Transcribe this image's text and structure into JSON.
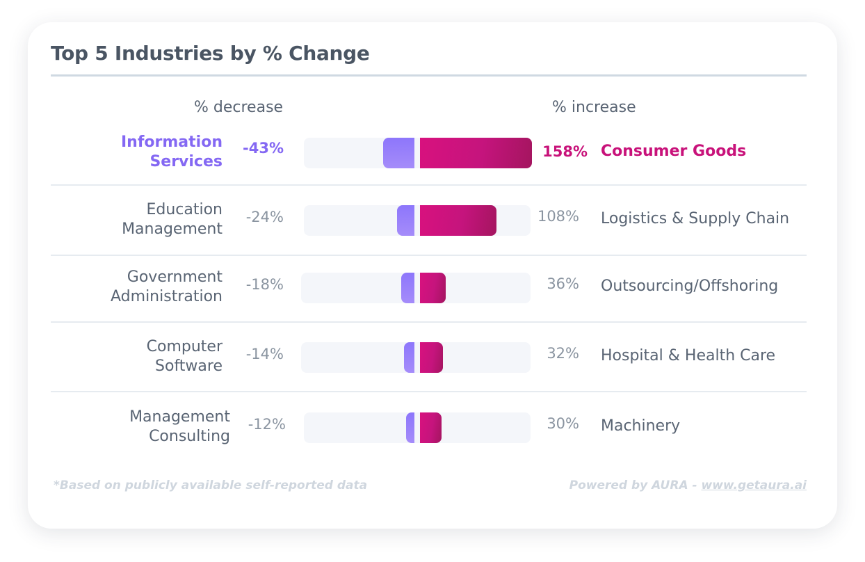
{
  "chart_data": {
    "type": "bar",
    "title": "Top 5 Industries by % Change",
    "left_header": "% decrease",
    "right_header": "% increase",
    "unit": "%",
    "rows": [
      {
        "decrease_industry": [
          "Information",
          "Services"
        ],
        "decrease_value": -43,
        "decrease_label": "-43%",
        "increase_industry": "Consumer Goods",
        "increase_value": 158,
        "increase_label": "158%",
        "highlight": true
      },
      {
        "decrease_industry": [
          "Education",
          "Management"
        ],
        "decrease_value": -24,
        "decrease_label": "-24%",
        "increase_industry": "Logistics & Supply Chain",
        "increase_value": 108,
        "increase_label": "108%",
        "highlight": false
      },
      {
        "decrease_industry": [
          "Government",
          "Administration"
        ],
        "decrease_value": -18,
        "decrease_label": "-18%",
        "increase_industry": "Outsourcing/Offshoring",
        "increase_value": 36,
        "increase_label": "36%",
        "highlight": false
      },
      {
        "decrease_industry": [
          "Computer",
          "Software"
        ],
        "decrease_value": -14,
        "decrease_label": "-14%",
        "increase_industry": "Hospital & Health Care",
        "increase_value": 32,
        "increase_label": "32%",
        "highlight": false
      },
      {
        "decrease_industry": [
          "Management",
          "Consulting"
        ],
        "decrease_value": -12,
        "decrease_label": "-12%",
        "increase_industry": "Machinery",
        "increase_value": 30,
        "increase_label": "30%",
        "highlight": false
      }
    ],
    "colors": {
      "decrease": "#8d76fb",
      "increase": "#d8117e",
      "highlight_decrease_text": "#8468f3",
      "highlight_increase_text": "#c8127a"
    }
  },
  "footer": {
    "note": "*Based on publicly available self-reported data",
    "powered_prefix": "Powered by AURA - ",
    "powered_link": "www.getaura.ai"
  }
}
